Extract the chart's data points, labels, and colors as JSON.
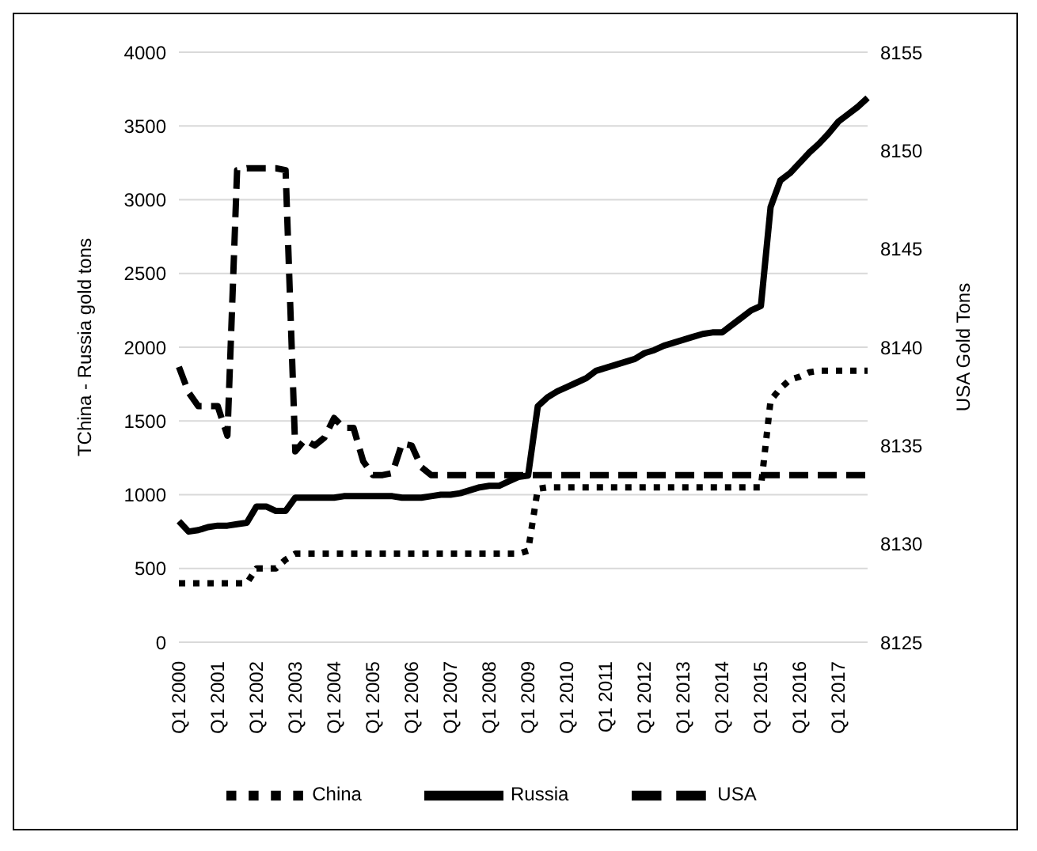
{
  "chart_data": {
    "type": "line",
    "ylabel": "TChina - Russia gold tons",
    "y2label": "USA Gold Tons",
    "categories": [
      "Q1 2000",
      null,
      null,
      null,
      "Q1 2001",
      null,
      null,
      null,
      "Q1 2002",
      null,
      null,
      null,
      "Q1 2003",
      null,
      null,
      null,
      "Q1 2004",
      null,
      null,
      null,
      "Q1 2005",
      null,
      null,
      null,
      "Q1 2006",
      null,
      null,
      null,
      "Q1 2007",
      null,
      null,
      null,
      "Q1 2008",
      null,
      null,
      null,
      "Q1 2009",
      null,
      null,
      null,
      "Q1 2010",
      null,
      null,
      null,
      "Q1 2011",
      null,
      null,
      null,
      "Q1 2012",
      null,
      null,
      null,
      "Q1 2013",
      null,
      null,
      null,
      "Q1 2014",
      null,
      null,
      null,
      "Q1 2015",
      null,
      null,
      null,
      "Q1 2016",
      null,
      null,
      null,
      "Q1 2017",
      null,
      null,
      null
    ],
    "series": [
      {
        "name": "China",
        "color": "#000000",
        "line_style": "dotted",
        "values": [
          400,
          400,
          400,
          400,
          400,
          400,
          400,
          400,
          500,
          500,
          500,
          560,
          600,
          600,
          600,
          600,
          600,
          600,
          600,
          600,
          600,
          600,
          600,
          600,
          600,
          600,
          600,
          600,
          600,
          600,
          600,
          600,
          600,
          600,
          600,
          600,
          620,
          1040,
          1050,
          1050,
          1050,
          1050,
          1050,
          1050,
          1050,
          1050,
          1050,
          1050,
          1050,
          1050,
          1050,
          1050,
          1050,
          1050,
          1050,
          1050,
          1050,
          1050,
          1050,
          1050,
          1050,
          1640,
          1720,
          1780,
          1800,
          1830,
          1840,
          1840,
          1840,
          1840,
          1840,
          1840
        ]
      },
      {
        "name": "Russia",
        "color": "#000000",
        "line_style": "solid",
        "values": [
          820,
          750,
          760,
          780,
          790,
          790,
          800,
          810,
          920,
          920,
          890,
          890,
          980,
          980,
          980,
          980,
          980,
          990,
          990,
          990,
          990,
          990,
          990,
          980,
          980,
          980,
          990,
          1000,
          1000,
          1010,
          1030,
          1050,
          1060,
          1060,
          1090,
          1120,
          1130,
          1600,
          1660,
          1700,
          1730,
          1760,
          1790,
          1840,
          1860,
          1880,
          1900,
          1920,
          1960,
          1980,
          2010,
          2030,
          2050,
          2070,
          2090,
          2100,
          2100,
          2150,
          2200,
          2250,
          2280,
          2950,
          3130,
          3180,
          3250,
          3320,
          3380,
          3450,
          3530,
          3580,
          3630,
          3690
        ]
      },
      {
        "name": "USA",
        "color": "#000000",
        "line_style": "dashed",
        "axis": "y2",
        "values": [
          8139,
          8137.7,
          8137,
          8137,
          8137,
          8135.5,
          8149,
          8149.1,
          8149.1,
          8149.1,
          8149.1,
          8149,
          8134.7,
          8135.3,
          8135,
          8135.4,
          8136.4,
          8135.9,
          8135.9,
          8134.2,
          8133.5,
          8133.5,
          8133.6,
          8135.1,
          8135,
          8133.9,
          8133.5,
          8133.5,
          8133.5,
          8133.5,
          8133.5,
          8133.5,
          8133.5,
          8133.5,
          8133.5,
          8133.5,
          8133.5,
          8133.5,
          8133.5,
          8133.5,
          8133.5,
          8133.5,
          8133.5,
          8133.5,
          8133.5,
          8133.5,
          8133.5,
          8133.5,
          8133.5,
          8133.5,
          8133.5,
          8133.5,
          8133.5,
          8133.5,
          8133.5,
          8133.5,
          8133.5,
          8133.5,
          8133.5,
          8133.5,
          8133.5,
          8133.5,
          8133.5,
          8133.5,
          8133.5,
          8133.5,
          8133.5,
          8133.5,
          8133.5,
          8133.5,
          8133.5,
          8133.5
        ]
      }
    ],
    "ylim": [
      0,
      4000
    ],
    "yticks": [
      0,
      500,
      1000,
      1500,
      2000,
      2500,
      3000,
      3500,
      4000
    ],
    "y2lim": [
      8125,
      8155
    ],
    "y2ticks": [
      8125,
      8130,
      8135,
      8140,
      8145,
      8150,
      8155
    ],
    "grid": "y",
    "legend": "bottom"
  }
}
